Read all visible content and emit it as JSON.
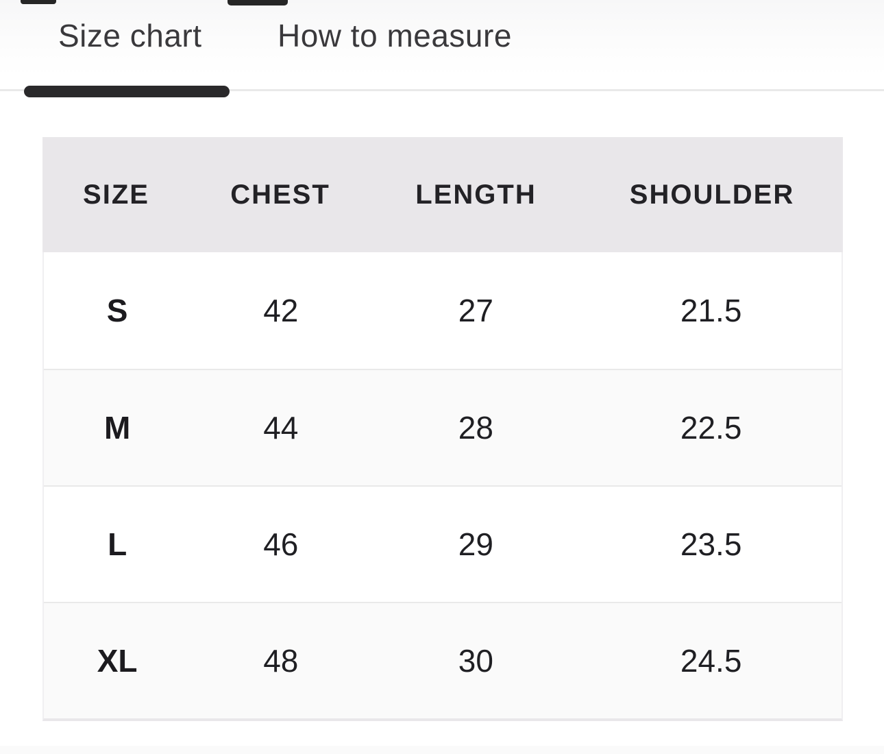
{
  "tabs": [
    {
      "label": "Size chart",
      "active": true
    },
    {
      "label": "How to measure",
      "active": false
    }
  ],
  "size_table": {
    "headers": {
      "size": "SIZE",
      "chest": "CHEST",
      "length": "LENGTH",
      "shoulder": "SHOULDER"
    },
    "rows": [
      {
        "size": "S",
        "chest": "42",
        "length": "27",
        "shoulder": "21.5"
      },
      {
        "size": "M",
        "chest": "44",
        "length": "28",
        "shoulder": "22.5"
      },
      {
        "size": "L",
        "chest": "46",
        "length": "29",
        "shoulder": "23.5"
      },
      {
        "size": "XL",
        "chest": "48",
        "length": "30",
        "shoulder": "24.5"
      }
    ]
  },
  "colors": {
    "tab_indicator": "#2a292b",
    "tab_track": "#e9e9e9",
    "table_header_bg": "#e9e7ea",
    "row_alt_bg": "#fafafa",
    "row_separator": "#e9e9e9",
    "text_primary": "#232226"
  }
}
